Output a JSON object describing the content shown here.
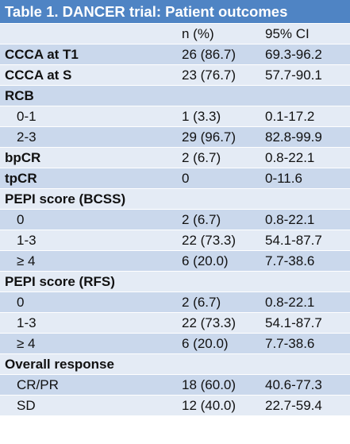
{
  "title": "Table 1. DANCER trial: Patient outcomes",
  "colors": {
    "header": "#4f84c4",
    "row_light": "#e4ebf5",
    "row_dark": "#cad8ec"
  },
  "header": {
    "label": "",
    "n_pct": "n (%)",
    "ci": "95% CI"
  },
  "rows": [
    {
      "label": "CCCA at T1",
      "n_pct": "26 (86.7)",
      "ci": "69.3-96.2",
      "bold": true
    },
    {
      "label": "CCCA at S",
      "n_pct": "23 (76.7)",
      "ci": "57.7-90.1",
      "bold": true
    },
    {
      "label": "RCB",
      "n_pct": "",
      "ci": "",
      "bold": true
    },
    {
      "label": "0-1",
      "n_pct": "1 (3.3)",
      "ci": "0.1-17.2",
      "bold": false
    },
    {
      "label": "2-3",
      "n_pct": "29 (96.7)",
      "ci": "82.8-99.9",
      "bold": false
    },
    {
      "label": "bpCR",
      "n_pct": "2 (6.7)",
      "ci": "0.8-22.1",
      "bold": true
    },
    {
      "label": "tpCR",
      "n_pct": "0",
      "ci": "0-11.6",
      "bold": true
    },
    {
      "label": "PEPI score (BCSS)",
      "n_pct": "",
      "ci": "",
      "bold": true
    },
    {
      "label": "0",
      "n_pct": "2 (6.7)",
      "ci": "0.8-22.1",
      "bold": false
    },
    {
      "label": "1-3",
      "n_pct": "22 (73.3)",
      "ci": "54.1-87.7",
      "bold": false
    },
    {
      "label": "≥ 4",
      "n_pct": "6 (20.0)",
      "ci": "7.7-38.6",
      "bold": false
    },
    {
      "label": "PEPI score (RFS)",
      "n_pct": "",
      "ci": "",
      "bold": true
    },
    {
      "label": "0",
      "n_pct": "2 (6.7)",
      "ci": "0.8-22.1",
      "bold": false
    },
    {
      "label": "1-3",
      "n_pct": "22 (73.3)",
      "ci": "54.1-87.7",
      "bold": false
    },
    {
      "label": "≥ 4",
      "n_pct": "6 (20.0)",
      "ci": "7.7-38.6",
      "bold": false
    },
    {
      "label": "Overall response",
      "n_pct": "",
      "ci": "",
      "bold": true
    },
    {
      "label": "CR/PR",
      "n_pct": "18 (60.0)",
      "ci": "40.6-77.3",
      "bold": false
    },
    {
      "label": "SD",
      "n_pct": "12 (40.0)",
      "ci": "22.7-59.4",
      "bold": false
    }
  ]
}
